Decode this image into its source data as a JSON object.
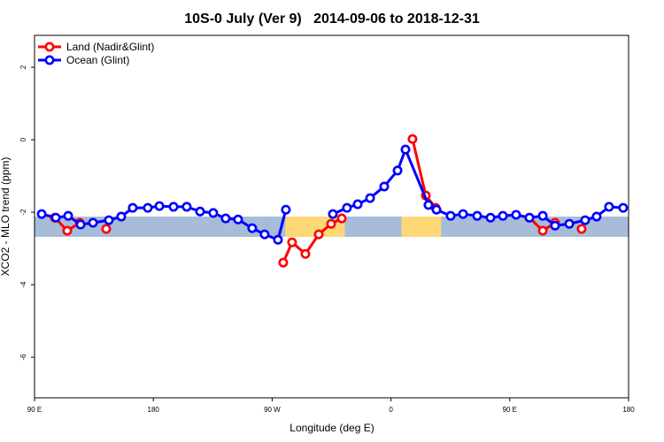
{
  "chart_data": {
    "type": "line",
    "title": "10S-0 July (Ver 9)   2014-09-06 to 2018-12-31",
    "xlabel": "Longitude (deg E)",
    "ylabel": "XCO2 - MLO trend (ppm)",
    "xlim": [
      90,
      540
    ],
    "ylim": [
      -7.12,
      2.88
    ],
    "xticks": [
      90,
      180,
      270,
      360,
      450,
      540
    ],
    "xtick_labels": [
      "90 E",
      "180",
      "90 W",
      "0",
      "90 E",
      "180"
    ],
    "yticks": [
      2,
      0,
      -2,
      -4,
      -6
    ],
    "ytick_labels": [
      "2",
      "0",
      "-2",
      "-4",
      "-6"
    ],
    "legend_position": "top-left",
    "background_band": {
      "ymin": -2.68,
      "ymax": -2.12,
      "ocean_color": "#a7bcd9",
      "land_color": "#fed776",
      "land_ranges": [
        [
          280,
          325
        ],
        [
          368,
          398
        ]
      ]
    },
    "series": [
      {
        "name": "Land (Nadir&Glint)",
        "color": "#ff0000",
        "x": [
          105.4,
          114.8,
          124.2,
          null,
          144.3,
          null,
          278.4,
          285.1,
          295.2,
          305.3,
          314.7,
          322.7,
          null,
          376.3,
          386.4,
          393.8,
          null,
          464.9,
          475.0,
          484.3,
          null,
          504.4
        ],
        "y": [
          -2.15,
          -2.51,
          -2.29,
          null,
          -2.46,
          null,
          -3.39,
          -2.83,
          -3.15,
          -2.61,
          -2.32,
          -2.17,
          null,
          0.02,
          -1.54,
          -1.88,
          null,
          -2.15,
          -2.51,
          -2.29,
          null,
          -2.46
        ]
      },
      {
        "name": "Ocean (Glint)",
        "color": "#0000ff",
        "x": [
          95.4,
          106.1,
          115.5,
          124.9,
          134.3,
          146.3,
          155.7,
          164.4,
          175.8,
          184.6,
          195.3,
          205.3,
          215.4,
          225.4,
          234.8,
          244.2,
          254.9,
          264.3,
          274.4,
          280.4,
          null,
          316.0,
          326.7,
          334.8,
          344.2,
          354.9,
          365.0,
          371.0,
          388.4,
          394.5,
          405.2,
          414.6,
          425.3,
          435.4,
          444.8,
          454.8,
          464.9,
          475.0,
          484.3,
          495.1,
          507.1,
          515.8,
          525.2,
          535.9
        ],
        "y": [
          -2.05,
          -2.15,
          -2.1,
          -2.34,
          -2.29,
          -2.22,
          -2.12,
          -1.88,
          -1.88,
          -1.83,
          -1.85,
          -1.85,
          -1.98,
          -2.02,
          -2.17,
          -2.2,
          -2.44,
          -2.61,
          -2.76,
          -1.93,
          null,
          -2.05,
          -1.88,
          -1.78,
          -1.61,
          -1.29,
          -0.85,
          -0.27,
          -1.8,
          -1.93,
          -2.1,
          -2.05,
          -2.1,
          -2.15,
          -2.1,
          -2.07,
          -2.15,
          -2.1,
          -2.37,
          -2.32,
          -2.22,
          -2.12,
          -1.85,
          -1.88
        ]
      }
    ]
  }
}
